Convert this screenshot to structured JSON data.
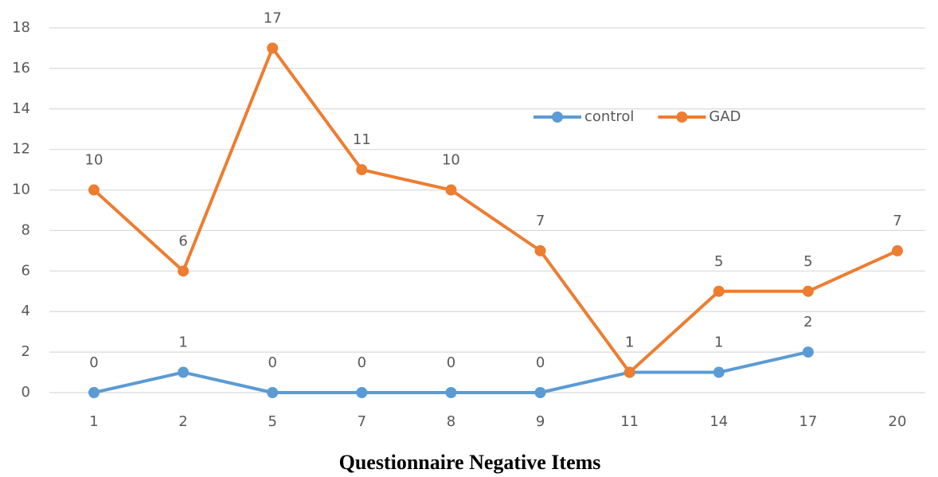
{
  "chart_data": {
    "type": "line",
    "x_label": "Questionnaire Negative Items",
    "categories": [
      "1",
      "2",
      "5",
      "7",
      "8",
      "9",
      "11",
      "14",
      "17",
      "20"
    ],
    "series": [
      {
        "name": "control",
        "color": "#5b9bd5",
        "values": [
          0,
          1,
          0,
          0,
          0,
          0,
          1,
          1,
          2,
          null
        ]
      },
      {
        "name": "GAD",
        "color": "#ed7d31",
        "values": [
          10,
          6,
          17,
          11,
          10,
          7,
          1,
          5,
          5,
          7
        ]
      }
    ],
    "ylim": [
      0,
      18
    ],
    "yticks": [
      0,
      2,
      4,
      6,
      8,
      10,
      12,
      14,
      16,
      18
    ],
    "grid": true,
    "legend": "top-right",
    "data_labels": true
  }
}
